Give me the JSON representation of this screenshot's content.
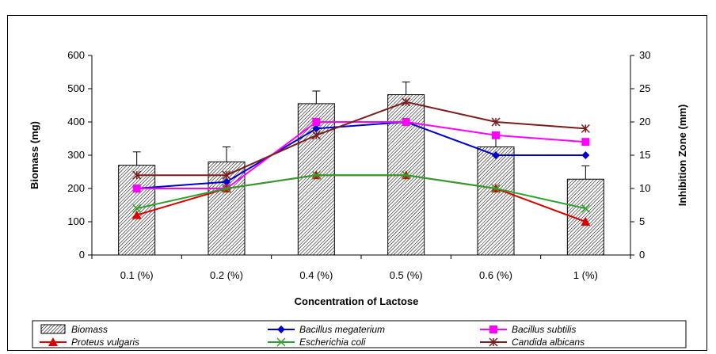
{
  "chart_data": {
    "type": "bar+line",
    "categories": [
      "0.1 (%)",
      "0.2 (%)",
      "0.4 (%)",
      "0.5 (%)",
      "0.6 (%)",
      "1 (%)"
    ],
    "xlabel": "Concentration of Lactose",
    "ylabel": "Biomass (mg)",
    "y2label": "Inhibition Zone (mm)",
    "ylim": [
      0,
      600
    ],
    "y2lim": [
      0,
      30
    ],
    "yticks": [
      0,
      100,
      200,
      300,
      400,
      500,
      600
    ],
    "y2ticks": [
      0,
      5,
      10,
      15,
      20,
      25,
      30
    ],
    "bar_series": {
      "name": "Biomass",
      "values": [
        270,
        280,
        455,
        482,
        325,
        228
      ],
      "errors": [
        40,
        45,
        38,
        38,
        30,
        40
      ]
    },
    "series": [
      {
        "name": "Bacillus megaterium",
        "color": "#0000cc",
        "marker": "diamond",
        "values": [
          10,
          11,
          19,
          20,
          15,
          15
        ]
      },
      {
        "name": "Bacillus subtilis",
        "color": "#ff00ff",
        "marker": "square",
        "values": [
          10,
          10,
          20,
          20,
          18,
          17
        ]
      },
      {
        "name": "Proteus vulgaris",
        "color": "#dd0000",
        "marker": "triangle",
        "values": [
          6,
          10,
          12,
          12,
          10,
          5
        ]
      },
      {
        "name": "Escherichia coli",
        "color": "#2ca02c",
        "marker": "x",
        "values": [
          7,
          10,
          12,
          12,
          10,
          7
        ]
      },
      {
        "name": "Candida albicans",
        "color": "#7b1d1d",
        "marker": "star",
        "values": [
          12,
          12,
          18,
          23,
          20,
          19
        ]
      }
    ],
    "legend_position": "bottom"
  }
}
